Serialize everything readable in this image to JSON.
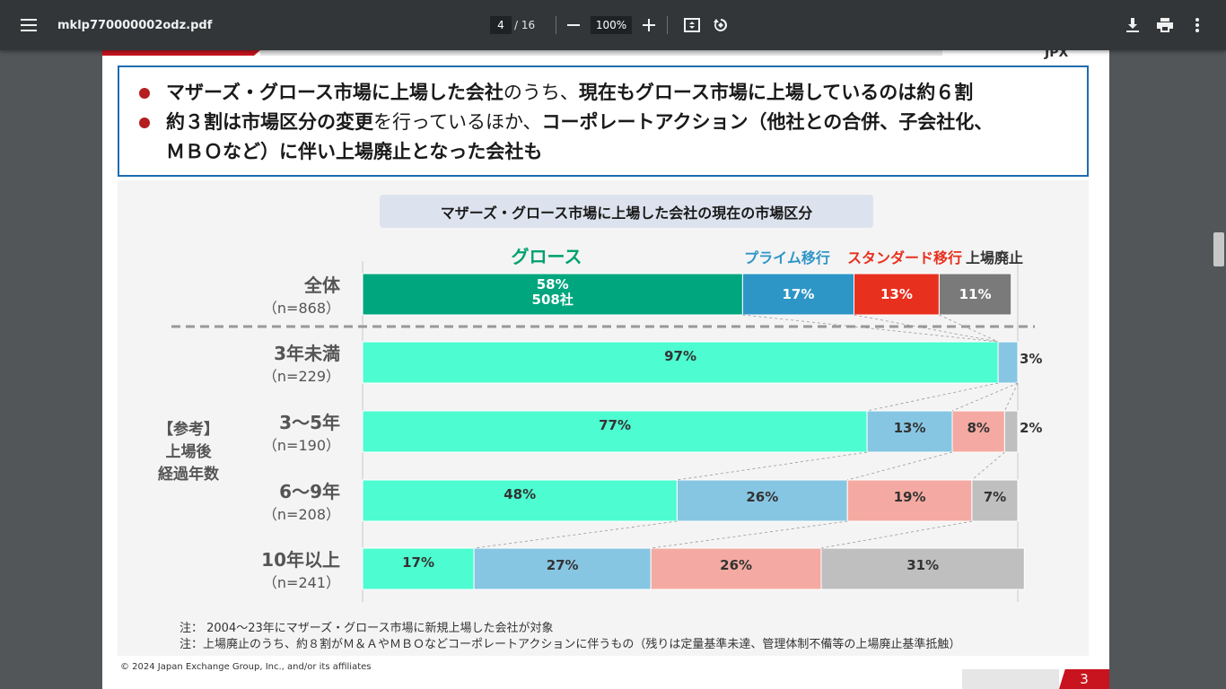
{
  "viewer": {
    "file_name": "mklp770000002odz.pdf",
    "page_current": "4",
    "page_total": "/ 16",
    "zoom": "100%",
    "icons": [
      "menu-icon",
      "zoom-out-icon",
      "zoom-in-icon",
      "fit-page-icon",
      "rotate-icon",
      "download-icon",
      "print-icon",
      "more-icon"
    ]
  },
  "slide": {
    "logo_fragment": "JPX",
    "bullets": [
      {
        "parts": [
          {
            "t": "マザーズ・グロース市場に上場した会社",
            "bold": true
          },
          {
            "t": "のうち、",
            "bold": false
          },
          {
            "t": "現在もグロース市場に上場しているのは約６割",
            "bold": true
          }
        ]
      },
      {
        "parts": [
          {
            "t": "約３割は市場区分の変更",
            "bold": true
          },
          {
            "t": "を行っているほか、",
            "bold": false
          },
          {
            "t": "コーポレートアクション（他社との合併、子会社化、",
            "bold": true
          }
        ]
      },
      {
        "parts": [
          {
            "t": "ＭＢＯなど）に伴い上場廃止となった会社も",
            "bold": true
          }
        ]
      }
    ],
    "notes": [
      "注： 2004～23年にマザーズ・グロース市場に新規上場した会社が対象",
      "注：上場廃止のうち、約８割がＭ＆ＡやＭＢＯなどコーポレートアクションに伴うもの（残りは定量基準未達、管理体制不備等の上場廃止基準抵触）"
    ],
    "copyright": "© 2024 Japan Exchange Group, Inc., and/or its affiliates",
    "page_number": "3"
  },
  "chart_data": {
    "type": "bar",
    "orientation": "horizontal-stacked-100",
    "title": "マザーズ・グロース市場に上場した会社の現在の市場区分",
    "series_names": [
      "グロース",
      "プライム移行",
      "スタンダード移行",
      "上場廃止"
    ],
    "series_colors_total": [
      "#00a67e",
      "#2e95c7",
      "#e8301e",
      "#7a7a7a"
    ],
    "series_colors_detail": [
      "#4dfcd0",
      "#87c6e3",
      "#f4aaa2",
      "#bfbfbf"
    ],
    "series_label_colors": [
      "#00a06f",
      "#2e95c7",
      "#e8301e",
      "#333333"
    ],
    "group_label": [
      "【参考】",
      "上場後",
      "経過年数"
    ],
    "rows": [
      {
        "label": "全体",
        "n": "（n=868）",
        "values": [
          58,
          17,
          13,
          11
        ],
        "labels": [
          "58%\n508社",
          "17%",
          "13%",
          "11%"
        ],
        "total": true
      },
      {
        "label": "3年未満",
        "n": "（n=229）",
        "values": [
          97,
          3,
          0,
          0
        ],
        "labels": [
          "97%",
          "3%",
          "",
          ""
        ]
      },
      {
        "label": "3～5年",
        "n": "（n=190）",
        "values": [
          77,
          13,
          8,
          2
        ],
        "labels": [
          "77%",
          "13%",
          "8%",
          "2%"
        ]
      },
      {
        "label": "6～9年",
        "n": "（n=208）",
        "values": [
          48,
          26,
          19,
          7
        ],
        "labels": [
          "48%",
          "26%",
          "19%",
          "7%"
        ]
      },
      {
        "label": "10年以上",
        "n": "（n=241）",
        "values": [
          17,
          27,
          26,
          31
        ],
        "labels": [
          "17%",
          "27%",
          "26%",
          "31%"
        ]
      }
    ]
  }
}
